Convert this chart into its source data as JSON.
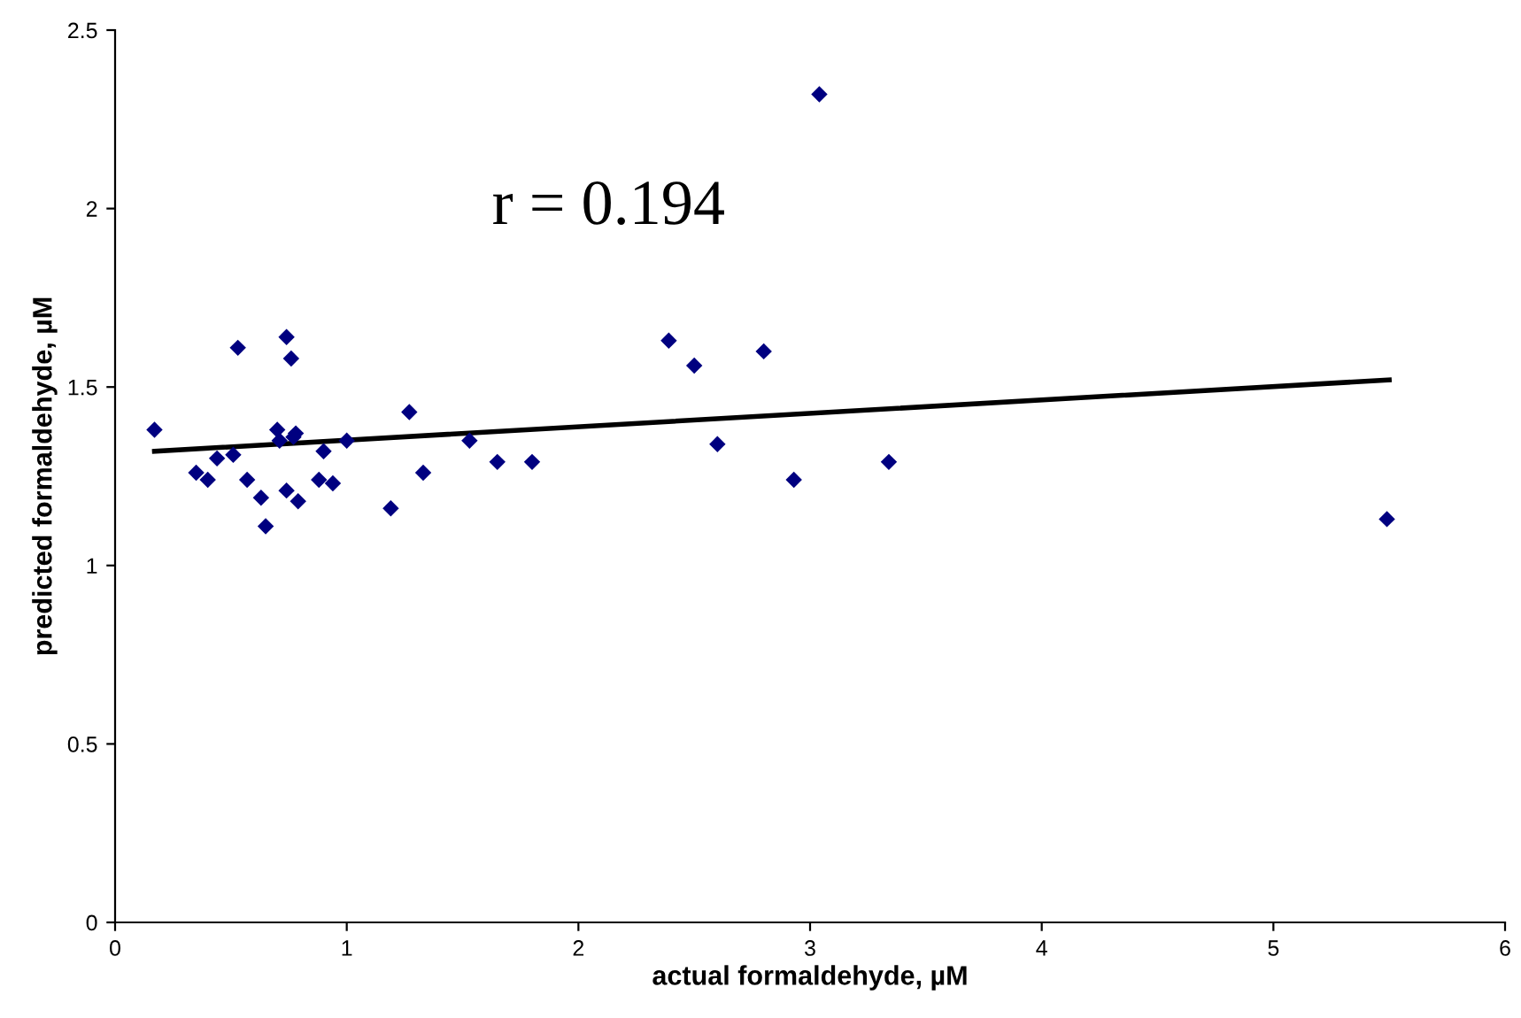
{
  "chart_data": {
    "type": "scatter",
    "xlabel": "actual formaldehyde, µM",
    "ylabel": "predicted formaldehyde, µM",
    "annotations": [
      "r = 0.194"
    ],
    "series": [
      {
        "color": "#000080",
        "marker": "diamond",
        "x": [
          0.17,
          0.53,
          0.74,
          0.76,
          0.7,
          0.71,
          0.78,
          0.77,
          0.44,
          0.51,
          0.35,
          0.4,
          0.57,
          0.63,
          0.65,
          0.74,
          0.79,
          0.9,
          0.88,
          0.94,
          1.0,
          1.27,
          1.33,
          1.19,
          3.04,
          2.39,
          2.5,
          2.8,
          1.53,
          1.65,
          1.8,
          2.6,
          2.93,
          3.34,
          5.49
        ],
        "values": [
          1.38,
          1.61,
          1.64,
          1.58,
          1.38,
          1.35,
          1.37,
          1.36,
          1.3,
          1.31,
          1.26,
          1.24,
          1.24,
          1.19,
          1.11,
          1.21,
          1.18,
          1.32,
          1.24,
          1.23,
          1.35,
          1.43,
          1.26,
          1.16,
          2.32,
          1.63,
          1.56,
          1.6,
          1.35,
          1.29,
          1.29,
          1.34,
          1.24,
          1.29,
          1.13
        ]
      },
      {
        "type": "line",
        "color": "#000000",
        "marker": "none",
        "line_style": "solid",
        "x": [
          0.17,
          5.5
        ],
        "values": [
          1.32,
          1.52
        ]
      }
    ],
    "xlim": [
      0,
      6
    ],
    "xticks": [
      0,
      1,
      2,
      3,
      4,
      5,
      6
    ],
    "ylim": [
      0,
      2.5
    ],
    "yticks": [
      0,
      0.5,
      1,
      1.5,
      2,
      2.5
    ],
    "grid": false,
    "legend": false
  }
}
